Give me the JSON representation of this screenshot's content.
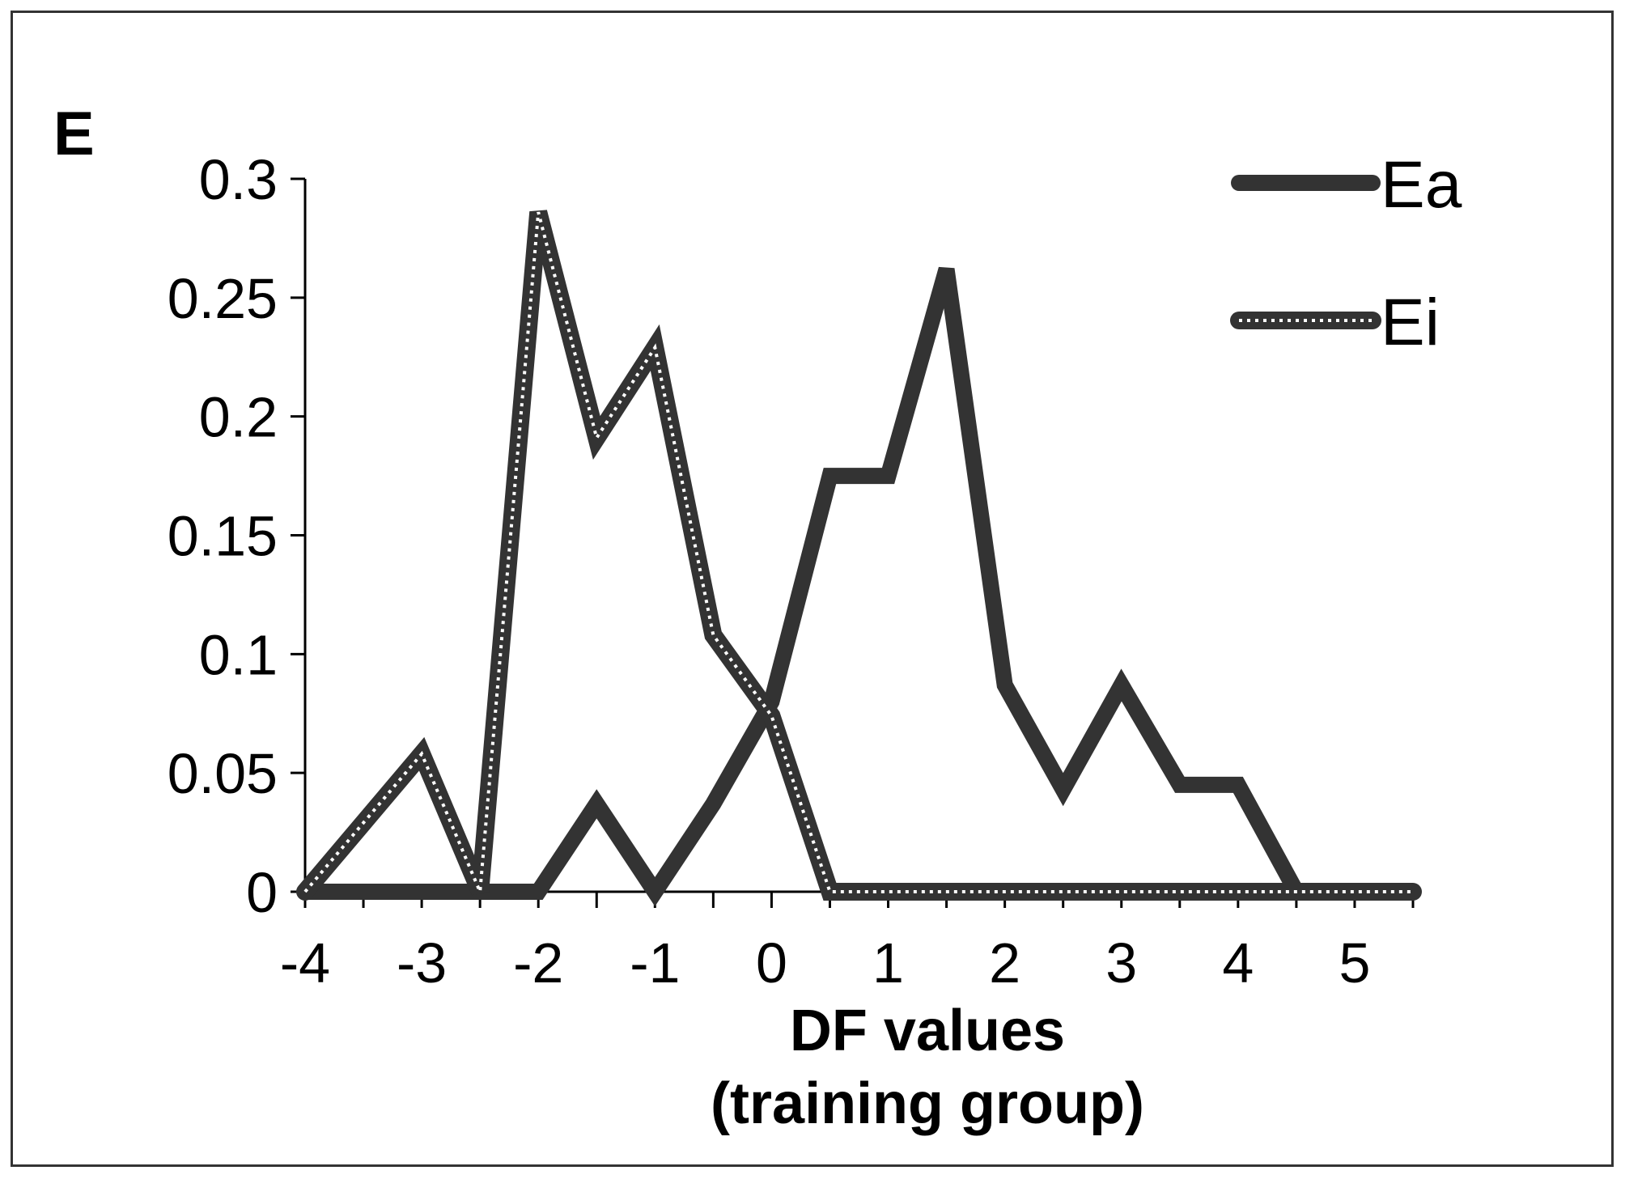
{
  "panel_label": "E",
  "chart_data": {
    "type": "line",
    "xlabel": "DF values",
    "xlabel_line2": "(training group)",
    "ylabel": "",
    "x_ticks": [
      -4,
      -3,
      -2,
      -1,
      0,
      1,
      2,
      3,
      4,
      5
    ],
    "y_ticks": [
      "0",
      "0.05",
      "0.1",
      "0.15",
      "0.2",
      "0.25",
      "0.3"
    ],
    "xlim": [
      -4,
      5.5
    ],
    "ylim": [
      0,
      0.3
    ],
    "grid": false,
    "legend_position": "top-right",
    "x": [
      -4,
      -3.5,
      -3,
      -2.5,
      -2,
      -1.5,
      -1,
      -0.5,
      0,
      0.5,
      1,
      1.5,
      2,
      2.5,
      3,
      3.5,
      4,
      4.5,
      5,
      5.5
    ],
    "series": [
      {
        "name": "Ea",
        "style": "solid",
        "color": "#333333",
        "values": [
          0,
          0,
          0,
          0,
          0,
          0.037,
          0,
          0.037,
          0.08,
          0.175,
          0.175,
          0.262,
          0.087,
          0.043,
          0.087,
          0.045,
          0.045,
          0,
          0,
          0
        ]
      },
      {
        "name": "Ei",
        "style": "dotted",
        "color": "#333333",
        "values": [
          0,
          0.029,
          0.058,
          0,
          0.286,
          0.191,
          0.229,
          0.108,
          0.074,
          0,
          0,
          0,
          0,
          0,
          0,
          0,
          0,
          0,
          0,
          0
        ]
      }
    ]
  }
}
